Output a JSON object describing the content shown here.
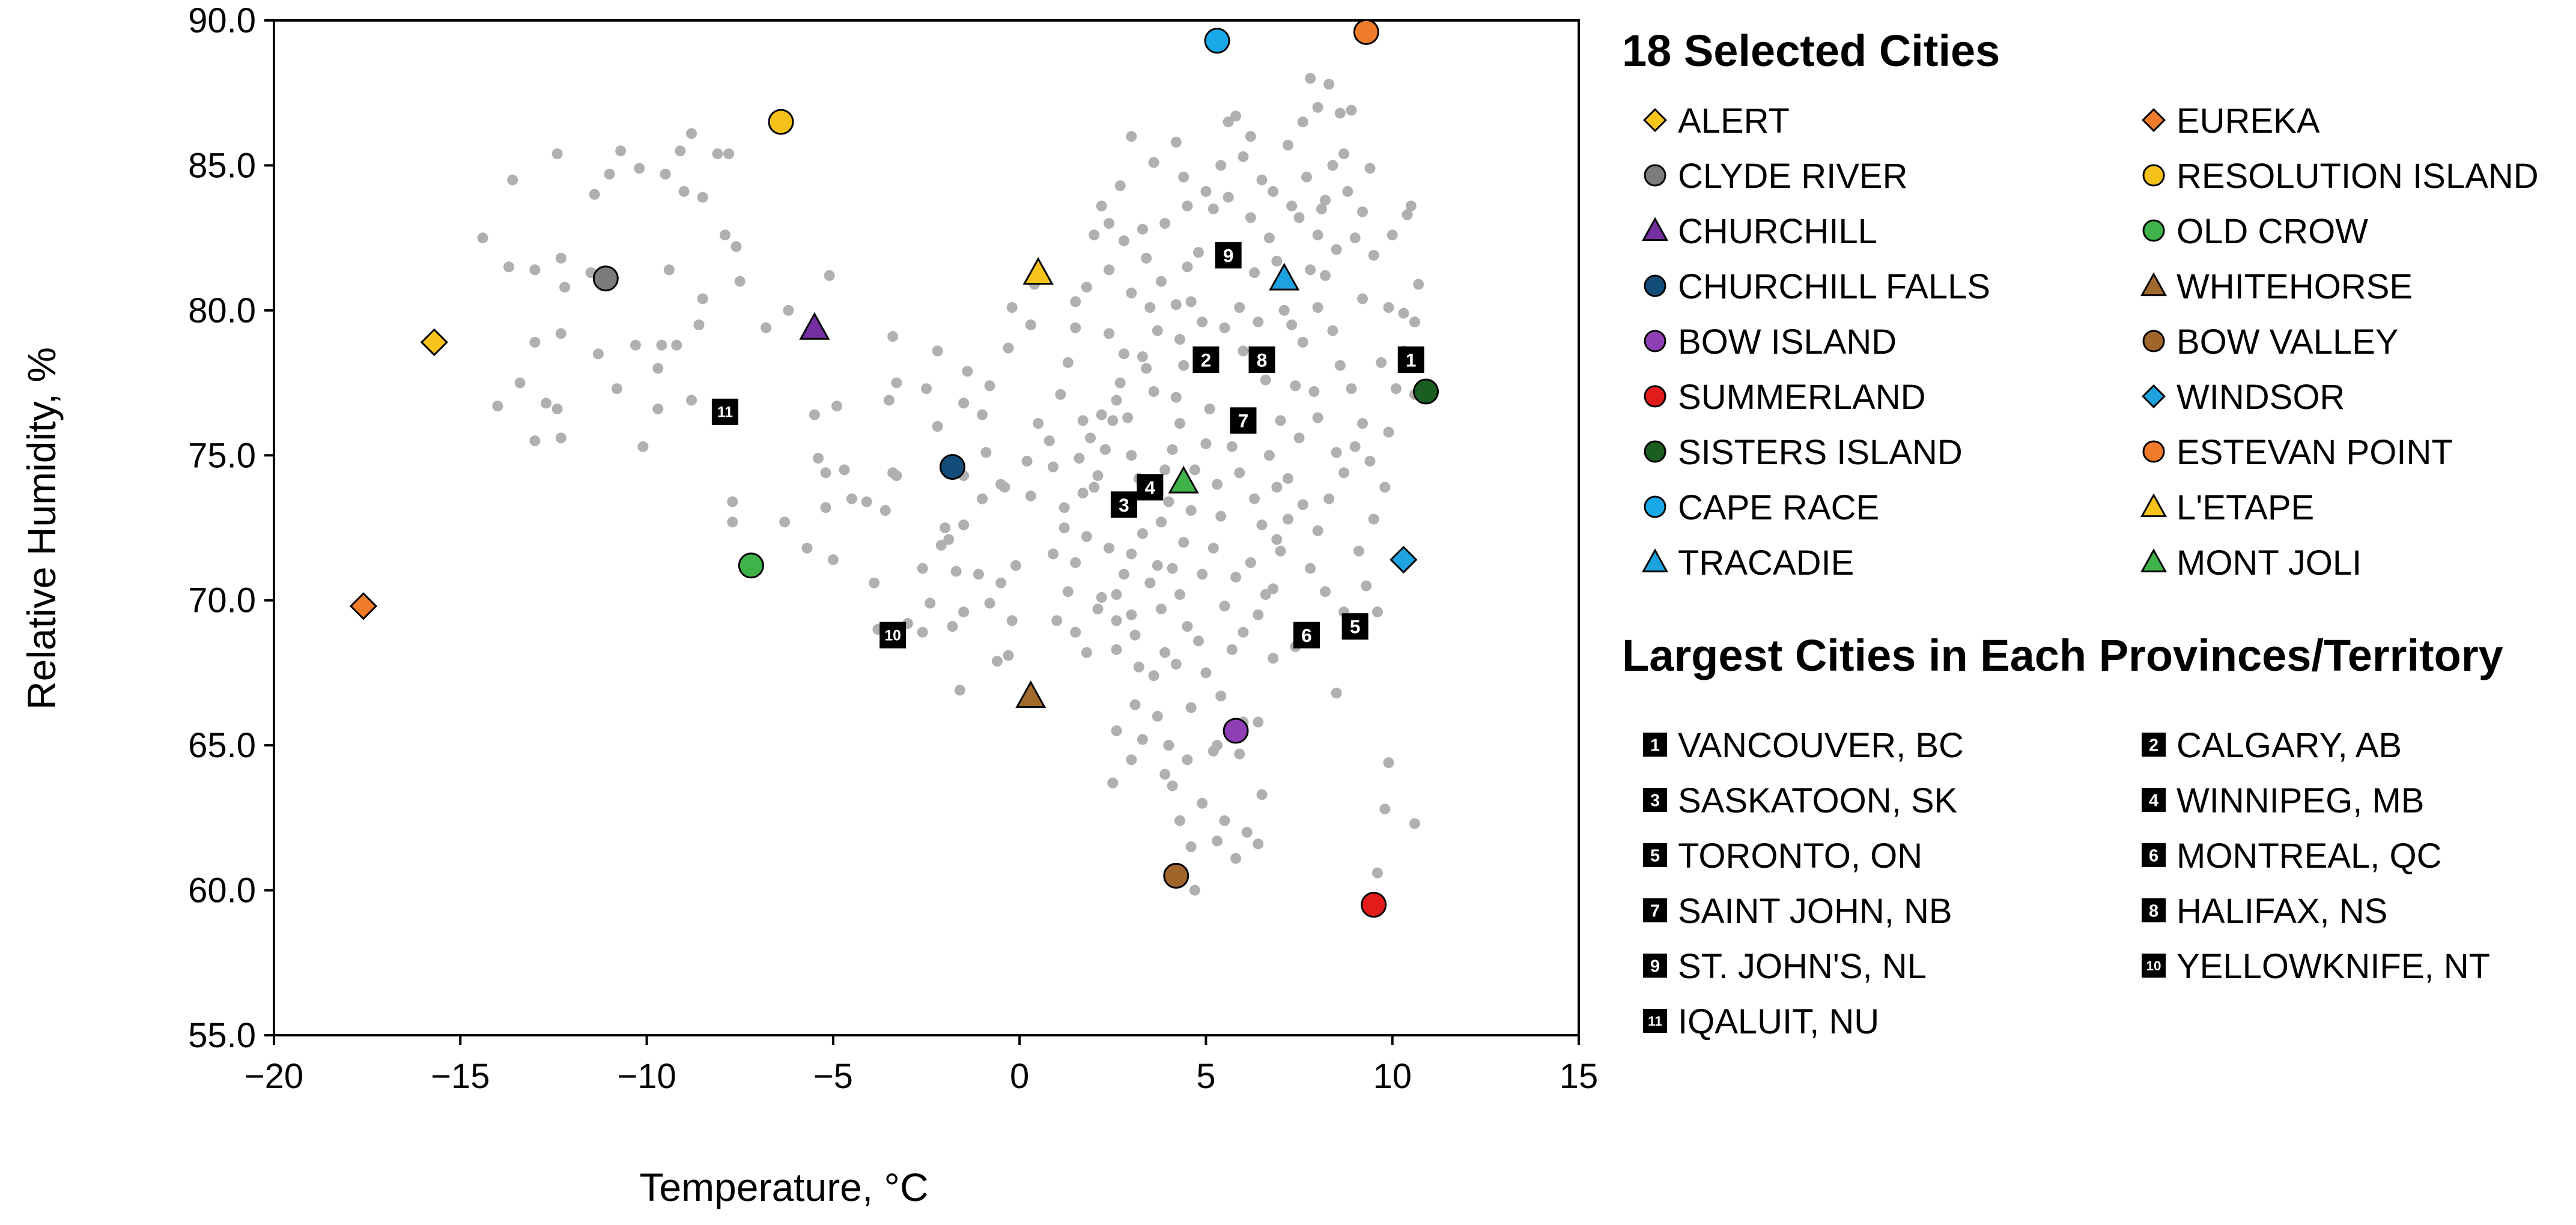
{
  "chart_data": {
    "type": "scatter",
    "xlabel": "Temperature, °C",
    "ylabel": "Relative Humidity, %",
    "xlim": [
      -20,
      15
    ],
    "ylim": [
      55,
      90
    ],
    "xticks": [
      -20,
      -15,
      -10,
      -5,
      0,
      5,
      10,
      15
    ],
    "yticks": [
      55.0,
      60.0,
      65.0,
      70.0,
      75.0,
      80.0,
      85.0,
      90.0
    ],
    "xtick_labels": [
      "−20",
      "−15",
      "−10",
      "−5",
      "0",
      "5",
      "10",
      "15"
    ],
    "ytick_labels": [
      "55.0",
      "60.0",
      "65.0",
      "70.0",
      "75.0",
      "80.0",
      "85.0",
      "90.0"
    ],
    "grid": false,
    "background_points_color": "#b2afaf",
    "background_points": [
      [
        -14.4,
        82.5
      ],
      [
        -13.6,
        84.5
      ],
      [
        -12.4,
        85.4
      ],
      [
        -11.4,
        84.0
      ],
      [
        -11.0,
        84.7
      ],
      [
        -10.7,
        85.5
      ],
      [
        -10.2,
        84.9
      ],
      [
        -9.5,
        84.7
      ],
      [
        -9.1,
        85.5
      ],
      [
        -8.8,
        86.1
      ],
      [
        -8.5,
        83.9
      ],
      [
        -8.1,
        85.4
      ],
      [
        -7.8,
        85.4
      ],
      [
        -9.0,
        84.1
      ],
      [
        -13.7,
        81.5
      ],
      [
        -13.0,
        81.4
      ],
      [
        -12.3,
        81.8
      ],
      [
        -12.2,
        80.8
      ],
      [
        -11.5,
        81.3
      ],
      [
        -9.4,
        81.4
      ],
      [
        -8.5,
        80.4
      ],
      [
        -7.9,
        82.6
      ],
      [
        -7.5,
        81.0
      ],
      [
        -7.6,
        82.2
      ],
      [
        -6.8,
        79.4
      ],
      [
        -6.2,
        80.0
      ],
      [
        -5.1,
        81.2
      ],
      [
        -13.0,
        78.9
      ],
      [
        -12.3,
        79.2
      ],
      [
        -11.3,
        78.5
      ],
      [
        -10.3,
        78.8
      ],
      [
        -9.6,
        78.8
      ],
      [
        -9.2,
        78.8
      ],
      [
        -8.6,
        79.5
      ],
      [
        -9.7,
        78.0
      ],
      [
        -10.8,
        77.3
      ],
      [
        -9.7,
        76.6
      ],
      [
        -10.1,
        75.3
      ],
      [
        -8.8,
        76.9
      ],
      [
        -14.0,
        76.7
      ],
      [
        -13.4,
        77.5
      ],
      [
        -12.7,
        76.8
      ],
      [
        -12.3,
        75.6
      ],
      [
        -12.4,
        76.6
      ],
      [
        -13.0,
        75.5
      ],
      [
        -7.7,
        73.4
      ],
      [
        -7.7,
        72.7
      ],
      [
        -6.3,
        72.7
      ],
      [
        -5.7,
        71.8
      ],
      [
        -5.0,
        71.4
      ],
      [
        -4.5,
        73.5
      ],
      [
        -5.4,
        74.9
      ],
      [
        -5.2,
        74.4
      ],
      [
        -4.7,
        74.5
      ],
      [
        -5.5,
        76.4
      ],
      [
        -4.9,
        76.7
      ],
      [
        -5.2,
        73.2
      ],
      [
        -4.1,
        73.4
      ],
      [
        -3.6,
        73.1
      ],
      [
        -3.4,
        74.4
      ],
      [
        -3.3,
        74.3
      ],
      [
        -3.5,
        76.9
      ],
      [
        -3.3,
        77.5
      ],
      [
        -3.4,
        79.1
      ],
      [
        -2.2,
        78.6
      ],
      [
        -2.5,
        77.3
      ],
      [
        -2.2,
        76.0
      ],
      [
        -3.8,
        69.0
      ],
      [
        -3.9,
        70.6
      ],
      [
        -3.0,
        69.2
      ],
      [
        -2.6,
        68.9
      ],
      [
        -2.4,
        69.9
      ],
      [
        -1.8,
        69.1
      ],
      [
        -1.5,
        69.6
      ],
      [
        -0.8,
        69.9
      ],
      [
        -2.6,
        71.1
      ],
      [
        -2.1,
        71.9
      ],
      [
        -1.7,
        71.0
      ],
      [
        -1.1,
        70.9
      ],
      [
        -0.5,
        70.6
      ],
      [
        -0.1,
        71.2
      ],
      [
        -1.5,
        72.6
      ],
      [
        -2.0,
        72.5
      ],
      [
        -1.9,
        72.1
      ],
      [
        -1.0,
        73.5
      ],
      [
        -0.4,
        73.9
      ],
      [
        0.3,
        73.6
      ],
      [
        -1.5,
        74.3
      ],
      [
        -0.9,
        75.1
      ],
      [
        -0.5,
        74.0
      ],
      [
        0.2,
        74.8
      ],
      [
        -1.0,
        76.4
      ],
      [
        -1.5,
        76.8
      ],
      [
        -1.4,
        77.9
      ],
      [
        -0.8,
        77.4
      ],
      [
        -0.3,
        78.7
      ],
      [
        0.3,
        79.5
      ],
      [
        0.4,
        80.9
      ],
      [
        -0.2,
        80.1
      ],
      [
        -1.6,
        66.9
      ],
      [
        -0.6,
        67.9
      ],
      [
        -0.2,
        69.3
      ],
      [
        -0.3,
        68.1
      ],
      [
        0.5,
        76.1
      ],
      [
        0.8,
        75.5
      ],
      [
        0.9,
        74.6
      ],
      [
        1.1,
        77.1
      ],
      [
        1.3,
        78.2
      ],
      [
        1.5,
        79.4
      ],
      [
        1.5,
        80.3
      ],
      [
        1.8,
        80.8
      ],
      [
        2.0,
        82.6
      ],
      [
        2.2,
        83.6
      ],
      [
        2.4,
        83.0
      ],
      [
        2.7,
        84.3
      ],
      [
        3.0,
        86.0
      ],
      [
        3.3,
        82.8
      ],
      [
        3.4,
        81.8
      ],
      [
        0.9,
        71.6
      ],
      [
        1.2,
        72.5
      ],
      [
        1.5,
        71.3
      ],
      [
        1.7,
        73.7
      ],
      [
        1.8,
        72.2
      ],
      [
        2.0,
        73.9
      ],
      [
        2.1,
        74.3
      ],
      [
        2.3,
        75.2
      ],
      [
        2.5,
        76.2
      ],
      [
        2.6,
        76.9
      ],
      [
        2.7,
        77.5
      ],
      [
        2.9,
        76.3
      ],
      [
        3.0,
        75.0
      ],
      [
        3.2,
        74.2
      ],
      [
        3.3,
        72.3
      ],
      [
        3.0,
        71.6
      ],
      [
        2.8,
        70.9
      ],
      [
        2.6,
        70.2
      ],
      [
        2.4,
        71.8
      ],
      [
        2.2,
        70.1
      ],
      [
        2.6,
        69.3
      ],
      [
        3.0,
        69.5
      ],
      [
        2.6,
        68.3
      ],
      [
        3.1,
        68.8
      ],
      [
        3.2,
        67.7
      ],
      [
        3.1,
        66.4
      ],
      [
        2.6,
        65.5
      ],
      [
        3.0,
        64.5
      ],
      [
        2.5,
        63.7
      ],
      [
        1.5,
        68.9
      ],
      [
        1.0,
        69.3
      ],
      [
        1.8,
        68.2
      ],
      [
        2.1,
        69.7
      ],
      [
        1.3,
        70.3
      ],
      [
        1.6,
        74.9
      ],
      [
        1.2,
        73.2
      ],
      [
        1.9,
        75.6
      ],
      [
        2.2,
        76.4
      ],
      [
        1.7,
        76.2
      ],
      [
        2.8,
        78.5
      ],
      [
        3.3,
        78.4
      ],
      [
        3.6,
        77.2
      ],
      [
        3.7,
        79.3
      ],
      [
        3.5,
        80.1
      ],
      [
        3.4,
        78.0
      ],
      [
        2.4,
        79.2
      ],
      [
        3.5,
        70.6
      ],
      [
        3.7,
        71.2
      ],
      [
        3.8,
        72.7
      ],
      [
        4.0,
        73.4
      ],
      [
        3.9,
        74.5
      ],
      [
        4.1,
        75.2
      ],
      [
        4.3,
        76.1
      ],
      [
        4.2,
        77.0
      ],
      [
        4.4,
        78.1
      ],
      [
        4.3,
        79.0
      ],
      [
        4.2,
        80.2
      ],
      [
        4.5,
        81.5
      ],
      [
        4.8,
        82.0
      ],
      [
        4.6,
        80.3
      ],
      [
        4.9,
        79.6
      ],
      [
        5.0,
        78.3
      ],
      [
        5.1,
        76.6
      ],
      [
        5.0,
        75.4
      ],
      [
        4.7,
        74.5
      ],
      [
        4.6,
        73.1
      ],
      [
        4.4,
        72.0
      ],
      [
        4.1,
        71.1
      ],
      [
        4.3,
        70.2
      ],
      [
        3.8,
        69.7
      ],
      [
        3.9,
        68.2
      ],
      [
        4.2,
        67.8
      ],
      [
        3.6,
        67.4
      ],
      [
        4.5,
        69.1
      ],
      [
        4.9,
        70.9
      ],
      [
        5.2,
        71.8
      ],
      [
        5.4,
        72.9
      ],
      [
        5.3,
        74.0
      ],
      [
        3.7,
        66.0
      ],
      [
        4.0,
        65.0
      ],
      [
        4.5,
        64.5
      ],
      [
        4.1,
        63.6
      ],
      [
        4.3,
        62.4
      ],
      [
        4.9,
        63.0
      ],
      [
        4.6,
        61.5
      ],
      [
        5.3,
        61.7
      ],
      [
        4.7,
        60.0
      ],
      [
        5.8,
        61.1
      ],
      [
        5.5,
        62.4
      ],
      [
        6.1,
        62.0
      ],
      [
        6.4,
        61.6
      ],
      [
        6.5,
        63.3
      ],
      [
        5.9,
        64.7
      ],
      [
        5.3,
        65.0
      ],
      [
        6.0,
        65.8
      ],
      [
        6.4,
        65.8
      ],
      [
        3.6,
        85.1
      ],
      [
        4.2,
        85.8
      ],
      [
        4.5,
        83.6
      ],
      [
        5.0,
        84.1
      ],
      [
        5.2,
        83.5
      ],
      [
        5.6,
        83.9
      ],
      [
        5.8,
        86.7
      ],
      [
        6.0,
        85.3
      ],
      [
        6.5,
        84.5
      ],
      [
        6.8,
        84.1
      ],
      [
        7.2,
        85.7
      ],
      [
        7.3,
        83.6
      ],
      [
        6.7,
        82.5
      ],
      [
        6.3,
        81.3
      ],
      [
        5.9,
        80.1
      ],
      [
        5.5,
        79.4
      ],
      [
        6.0,
        78.6
      ],
      [
        6.4,
        79.6
      ],
      [
        6.6,
        77.6
      ],
      [
        6.1,
        76.4
      ],
      [
        5.7,
        75.3
      ],
      [
        5.9,
        74.4
      ],
      [
        6.3,
        73.5
      ],
      [
        6.5,
        72.6
      ],
      [
        6.2,
        71.3
      ],
      [
        5.8,
        70.8
      ],
      [
        5.5,
        69.8
      ],
      [
        6.0,
        68.9
      ],
      [
        6.4,
        69.5
      ],
      [
        6.8,
        70.4
      ],
      [
        7.0,
        71.7
      ],
      [
        7.2,
        72.8
      ],
      [
        6.9,
        73.9
      ],
      [
        6.7,
        75.0
      ],
      [
        7.0,
        76.2
      ],
      [
        7.4,
        77.4
      ],
      [
        7.6,
        78.9
      ],
      [
        7.1,
        80.0
      ],
      [
        7.8,
        81.4
      ],
      [
        8.0,
        82.6
      ],
      [
        8.2,
        83.8
      ],
      [
        7.7,
        84.6
      ],
      [
        7.8,
        88.0
      ],
      [
        8.3,
        87.8
      ],
      [
        8.6,
        86.8
      ],
      [
        8.7,
        85.4
      ],
      [
        8.9,
        86.9
      ],
      [
        8.4,
        85.0
      ],
      [
        8.1,
        83.5
      ],
      [
        8.8,
        84.1
      ],
      [
        9.0,
        82.5
      ],
      [
        9.4,
        84.9
      ],
      [
        9.2,
        83.4
      ],
      [
        8.5,
        82.1
      ],
      [
        8.2,
        81.2
      ],
      [
        8.0,
        80.1
      ],
      [
        8.4,
        79.3
      ],
      [
        8.6,
        78.1
      ],
      [
        8.9,
        77.3
      ],
      [
        9.2,
        76.1
      ],
      [
        9.0,
        75.3
      ],
      [
        8.7,
        74.4
      ],
      [
        8.3,
        73.5
      ],
      [
        8.0,
        72.4
      ],
      [
        7.8,
        71.1
      ],
      [
        8.2,
        70.3
      ],
      [
        8.7,
        69.6
      ],
      [
        9.3,
        70.5
      ],
      [
        9.6,
        69.6
      ],
      [
        9.1,
        71.7
      ],
      [
        9.5,
        72.8
      ],
      [
        9.8,
        73.9
      ],
      [
        9.4,
        74.8
      ],
      [
        9.9,
        75.8
      ],
      [
        10.1,
        77.3
      ],
      [
        9.7,
        78.2
      ],
      [
        10.3,
        79.9
      ],
      [
        10.7,
        80.9
      ],
      [
        10.6,
        79.6
      ],
      [
        9.9,
        80.1
      ],
      [
        9.2,
        80.4
      ],
      [
        9.5,
        81.9
      ],
      [
        10.0,
        82.6
      ],
      [
        10.4,
        83.3
      ],
      [
        10.5,
        83.6
      ],
      [
        10.3,
        78.6
      ],
      [
        10.6,
        77.1
      ],
      [
        8.5,
        66.8
      ],
      [
        9.9,
        64.4
      ],
      [
        10.6,
        62.3
      ],
      [
        9.8,
        62.8
      ],
      [
        9.6,
        60.6
      ],
      [
        7.3,
        79.5
      ],
      [
        7.5,
        75.6
      ],
      [
        7.9,
        77.2
      ],
      [
        7.2,
        74.2
      ],
      [
        6.9,
        72.1
      ],
      [
        6.6,
        70.2
      ],
      [
        7.6,
        73.3
      ],
      [
        8.0,
        76.3
      ],
      [
        8.5,
        75.1
      ],
      [
        7.4,
        68.4
      ],
      [
        6.8,
        68.0
      ],
      [
        5.7,
        68.3
      ],
      [
        5.4,
        66.7
      ],
      [
        5.0,
        67.5
      ],
      [
        4.8,
        68.6
      ],
      [
        4.6,
        66.3
      ],
      [
        5.2,
        64.8
      ],
      [
        3.9,
        64.0
      ],
      [
        3.3,
        65.2
      ],
      [
        3.8,
        81.0
      ],
      [
        3.0,
        80.6
      ],
      [
        2.4,
        81.4
      ],
      [
        2.8,
        82.4
      ],
      [
        3.9,
        83.0
      ],
      [
        4.4,
        84.6
      ],
      [
        5.4,
        85.0
      ],
      [
        6.2,
        83.2
      ],
      [
        6.9,
        81.7
      ],
      [
        7.5,
        83.2
      ],
      [
        7.6,
        86.5
      ],
      [
        8.0,
        87.0
      ],
      [
        6.2,
        86.0
      ],
      [
        5.6,
        86.5
      ]
    ],
    "selected_cities": [
      {
        "name": "ALERT",
        "x": -15.7,
        "y": 78.9,
        "shape": "diamond",
        "color": "#f8c41b"
      },
      {
        "name": "EUREKA",
        "x": -17.6,
        "y": 69.8,
        "shape": "diamond",
        "color": "#f07c2b"
      },
      {
        "name": "CLYDE RIVER",
        "x": -11.1,
        "y": 81.1,
        "shape": "circle",
        "color": "#7d7b7b"
      },
      {
        "name": "RESOLUTION ISLAND",
        "x": -6.4,
        "y": 86.5,
        "shape": "circle",
        "color": "#f6c21a"
      },
      {
        "name": "CHURCHILL",
        "x": -5.5,
        "y": 79.4,
        "shape": "triangle",
        "color": "#7430a0"
      },
      {
        "name": "OLD CROW",
        "x": -7.2,
        "y": 71.2,
        "shape": "circle",
        "color": "#3fb34a"
      },
      {
        "name": "CHURCHILL FALLS",
        "x": -1.8,
        "y": 74.6,
        "shape": "circle",
        "color": "#124d7a"
      },
      {
        "name": "WHITEHORSE",
        "x": 0.3,
        "y": 66.7,
        "shape": "triangle",
        "color": "#a06a2c"
      },
      {
        "name": "BOW ISLAND",
        "x": 5.8,
        "y": 65.5,
        "shape": "circle",
        "color": "#8e3fb6"
      },
      {
        "name": "BOW VALLEY",
        "x": 4.2,
        "y": 60.5,
        "shape": "circle",
        "color": "#a0652a"
      },
      {
        "name": "SUMMERLAND",
        "x": 9.5,
        "y": 59.5,
        "shape": "circle",
        "color": "#e21b1b"
      },
      {
        "name": "WINDSOR",
        "x": 10.3,
        "y": 71.4,
        "shape": "diamond",
        "color": "#1fa3e0"
      },
      {
        "name": "SISTERS ISLAND",
        "x": 10.9,
        "y": 77.2,
        "shape": "circle",
        "color": "#1b5e22"
      },
      {
        "name": "ESTEVAN POINT",
        "x": 9.3,
        "y": 89.6,
        "shape": "circle",
        "color": "#f07c2b"
      },
      {
        "name": "CAPE RACE",
        "x": 5.3,
        "y": 89.3,
        "shape": "circle",
        "color": "#19a9e8"
      },
      {
        "name": "L'ETAPE",
        "x": 0.5,
        "y": 81.3,
        "shape": "triangle",
        "color": "#f8c41b"
      },
      {
        "name": "TRACADIE",
        "x": 7.1,
        "y": 81.1,
        "shape": "triangle",
        "color": "#1fa3e0"
      },
      {
        "name": "MONT JOLI",
        "x": 4.4,
        "y": 74.1,
        "shape": "triangle",
        "color": "#3fb34a"
      }
    ],
    "largest_cities": [
      {
        "num": "1",
        "name": "VANCOUVER, BC",
        "x": 10.5,
        "y": 78.3
      },
      {
        "num": "2",
        "name": "CALGARY, AB",
        "x": 5.0,
        "y": 78.3
      },
      {
        "num": "3",
        "name": "SASKATOON, SK",
        "x": 2.8,
        "y": 73.3
      },
      {
        "num": "4",
        "name": "WINNIPEG, MB",
        "x": 3.5,
        "y": 73.9
      },
      {
        "num": "5",
        "name": "TORONTO, ON",
        "x": 9.0,
        "y": 69.1
      },
      {
        "num": "6",
        "name": "MONTREAL, QC",
        "x": 7.7,
        "y": 68.8
      },
      {
        "num": "7",
        "name": "SAINT JOHN, NB",
        "x": 6.0,
        "y": 76.2
      },
      {
        "num": "8",
        "name": "HALIFAX, NS",
        "x": 6.5,
        "y": 78.3
      },
      {
        "num": "9",
        "name": "ST. JOHN'S, NL",
        "x": 5.6,
        "y": 81.9
      },
      {
        "num": "10",
        "name": "YELLOWKNIFE, NT",
        "x": -3.4,
        "y": 68.8
      },
      {
        "num": "11",
        "name": "IQALUIT, NU",
        "x": -7.9,
        "y": 76.5
      }
    ],
    "legend": {
      "placement": "right",
      "selected_title": "18 Selected Cities",
      "largest_title": "Largest Cities in Each Provinces/Territory"
    }
  }
}
